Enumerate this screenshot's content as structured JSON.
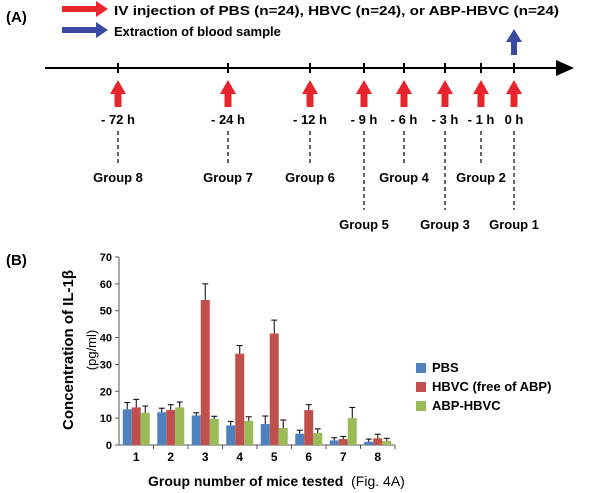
{
  "panel_a": {
    "label": "(A)",
    "legend": {
      "injection_text": "IV injection of PBS (n=24), HBVC (n=24), or ABP-HBVC (n=24)",
      "extraction_text": "Extraction of blood sample",
      "injection_color": "#e8242c",
      "extraction_color": "#3a4aa0"
    },
    "timepoints": [
      {
        "time": "- 72 h",
        "group": "Group 8",
        "group_row": "upper"
      },
      {
        "time": "- 24 h",
        "group": "Group 7",
        "group_row": "upper"
      },
      {
        "time": "- 12 h",
        "group": "Group 6",
        "group_row": "upper"
      },
      {
        "time": "- 9 h",
        "group": "Group 5",
        "group_row": "lower"
      },
      {
        "time": "- 6 h",
        "group": "Group 4",
        "group_row": "upper"
      },
      {
        "time": "- 3 h",
        "group": "Group 3",
        "group_row": "lower"
      },
      {
        "time": "- 1 h",
        "group": "Group 2",
        "group_row": "upper"
      },
      {
        "time": "0 h",
        "group": "Group 1",
        "group_row": "lower"
      }
    ]
  },
  "panel_b": {
    "label": "(B)",
    "chart_data": {
      "type": "bar",
      "categories": [
        "1",
        "2",
        "3",
        "4",
        "5",
        "6",
        "7",
        "8"
      ],
      "series": [
        {
          "name": "PBS",
          "color": "#4f81bd",
          "values": [
            13.3,
            12.2,
            11.0,
            7.3,
            7.8,
            4.2,
            1.7,
            1.2
          ],
          "errors": [
            2.5,
            1.5,
            1.0,
            1.5,
            3.0,
            1.3,
            1.0,
            1.0
          ]
        },
        {
          "name": "HBVC (free of ABP)",
          "color": "#c0504d",
          "values": [
            14.0,
            13.0,
            54.0,
            34.0,
            41.5,
            13.0,
            2.2,
            2.5
          ],
          "errors": [
            3.0,
            2.0,
            6.0,
            3.0,
            5.0,
            2.0,
            1.0,
            1.5
          ]
        },
        {
          "name": "ABP-HBVC",
          "color": "#9bbb59",
          "values": [
            12.0,
            14.0,
            9.7,
            9.0,
            6.3,
            4.5,
            10.0,
            1.5
          ],
          "errors": [
            2.5,
            2.0,
            1.0,
            1.5,
            3.0,
            1.5,
            4.0,
            1.0
          ]
        }
      ],
      "yticks": [
        "0",
        "10",
        "20",
        "30",
        "40",
        "50",
        "60",
        "70"
      ],
      "ylim": [
        0,
        70
      ],
      "ylabel": "Concentration of IL-1β",
      "ylabel_unit": "(pg/ml)",
      "xlabel": "Group number of mice tested",
      "xlabel_suffix": "(Fig. 4A)",
      "legend_position": "right",
      "grid": false
    }
  }
}
